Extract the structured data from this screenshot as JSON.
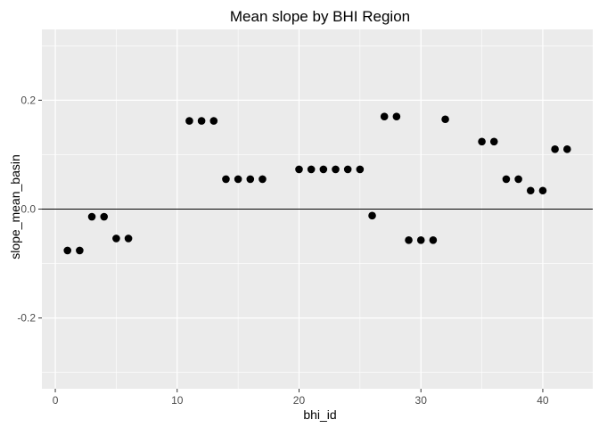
{
  "chart_data": {
    "type": "scatter",
    "title": "Mean slope by BHI Region",
    "xlabel": "bhi_id",
    "ylabel": "slope_mean_basin",
    "xlim": [
      -1.1,
      44.1
    ],
    "ylim": [
      -0.33,
      0.33
    ],
    "x_ticks": [
      0,
      10,
      20,
      30,
      40
    ],
    "y_ticks": [
      -0.2,
      0.0,
      0.2
    ],
    "y_tick_labels": [
      "-0.2",
      "0.0",
      "0.2"
    ],
    "reference_line_y": 0,
    "grid": true,
    "legend": "none",
    "panel_color": "#ebebeb",
    "grid_color": "#ffffff",
    "point_color": "#000000",
    "points": [
      {
        "x": 1,
        "y": -0.076
      },
      {
        "x": 2,
        "y": -0.076
      },
      {
        "x": 3,
        "y": -0.014
      },
      {
        "x": 4,
        "y": -0.014
      },
      {
        "x": 5,
        "y": -0.054
      },
      {
        "x": 6,
        "y": -0.054
      },
      {
        "x": 11,
        "y": 0.162
      },
      {
        "x": 12,
        "y": 0.162
      },
      {
        "x": 13,
        "y": 0.162
      },
      {
        "x": 14,
        "y": 0.055
      },
      {
        "x": 15,
        "y": 0.055
      },
      {
        "x": 16,
        "y": 0.055
      },
      {
        "x": 17,
        "y": 0.055
      },
      {
        "x": 20,
        "y": 0.073
      },
      {
        "x": 21,
        "y": 0.073
      },
      {
        "x": 22,
        "y": 0.073
      },
      {
        "x": 23,
        "y": 0.073
      },
      {
        "x": 24,
        "y": 0.073
      },
      {
        "x": 25,
        "y": 0.073
      },
      {
        "x": 26,
        "y": -0.012
      },
      {
        "x": 27,
        "y": 0.17
      },
      {
        "x": 28,
        "y": 0.17
      },
      {
        "x": 29,
        "y": -0.057
      },
      {
        "x": 30,
        "y": -0.057
      },
      {
        "x": 31,
        "y": -0.057
      },
      {
        "x": 32,
        "y": 0.165
      },
      {
        "x": 35,
        "y": 0.124
      },
      {
        "x": 36,
        "y": 0.124
      },
      {
        "x": 37,
        "y": 0.055
      },
      {
        "x": 38,
        "y": 0.055
      },
      {
        "x": 39,
        "y": 0.034
      },
      {
        "x": 40,
        "y": 0.034
      },
      {
        "x": 41,
        "y": 0.11
      },
      {
        "x": 42,
        "y": 0.11
      }
    ]
  }
}
